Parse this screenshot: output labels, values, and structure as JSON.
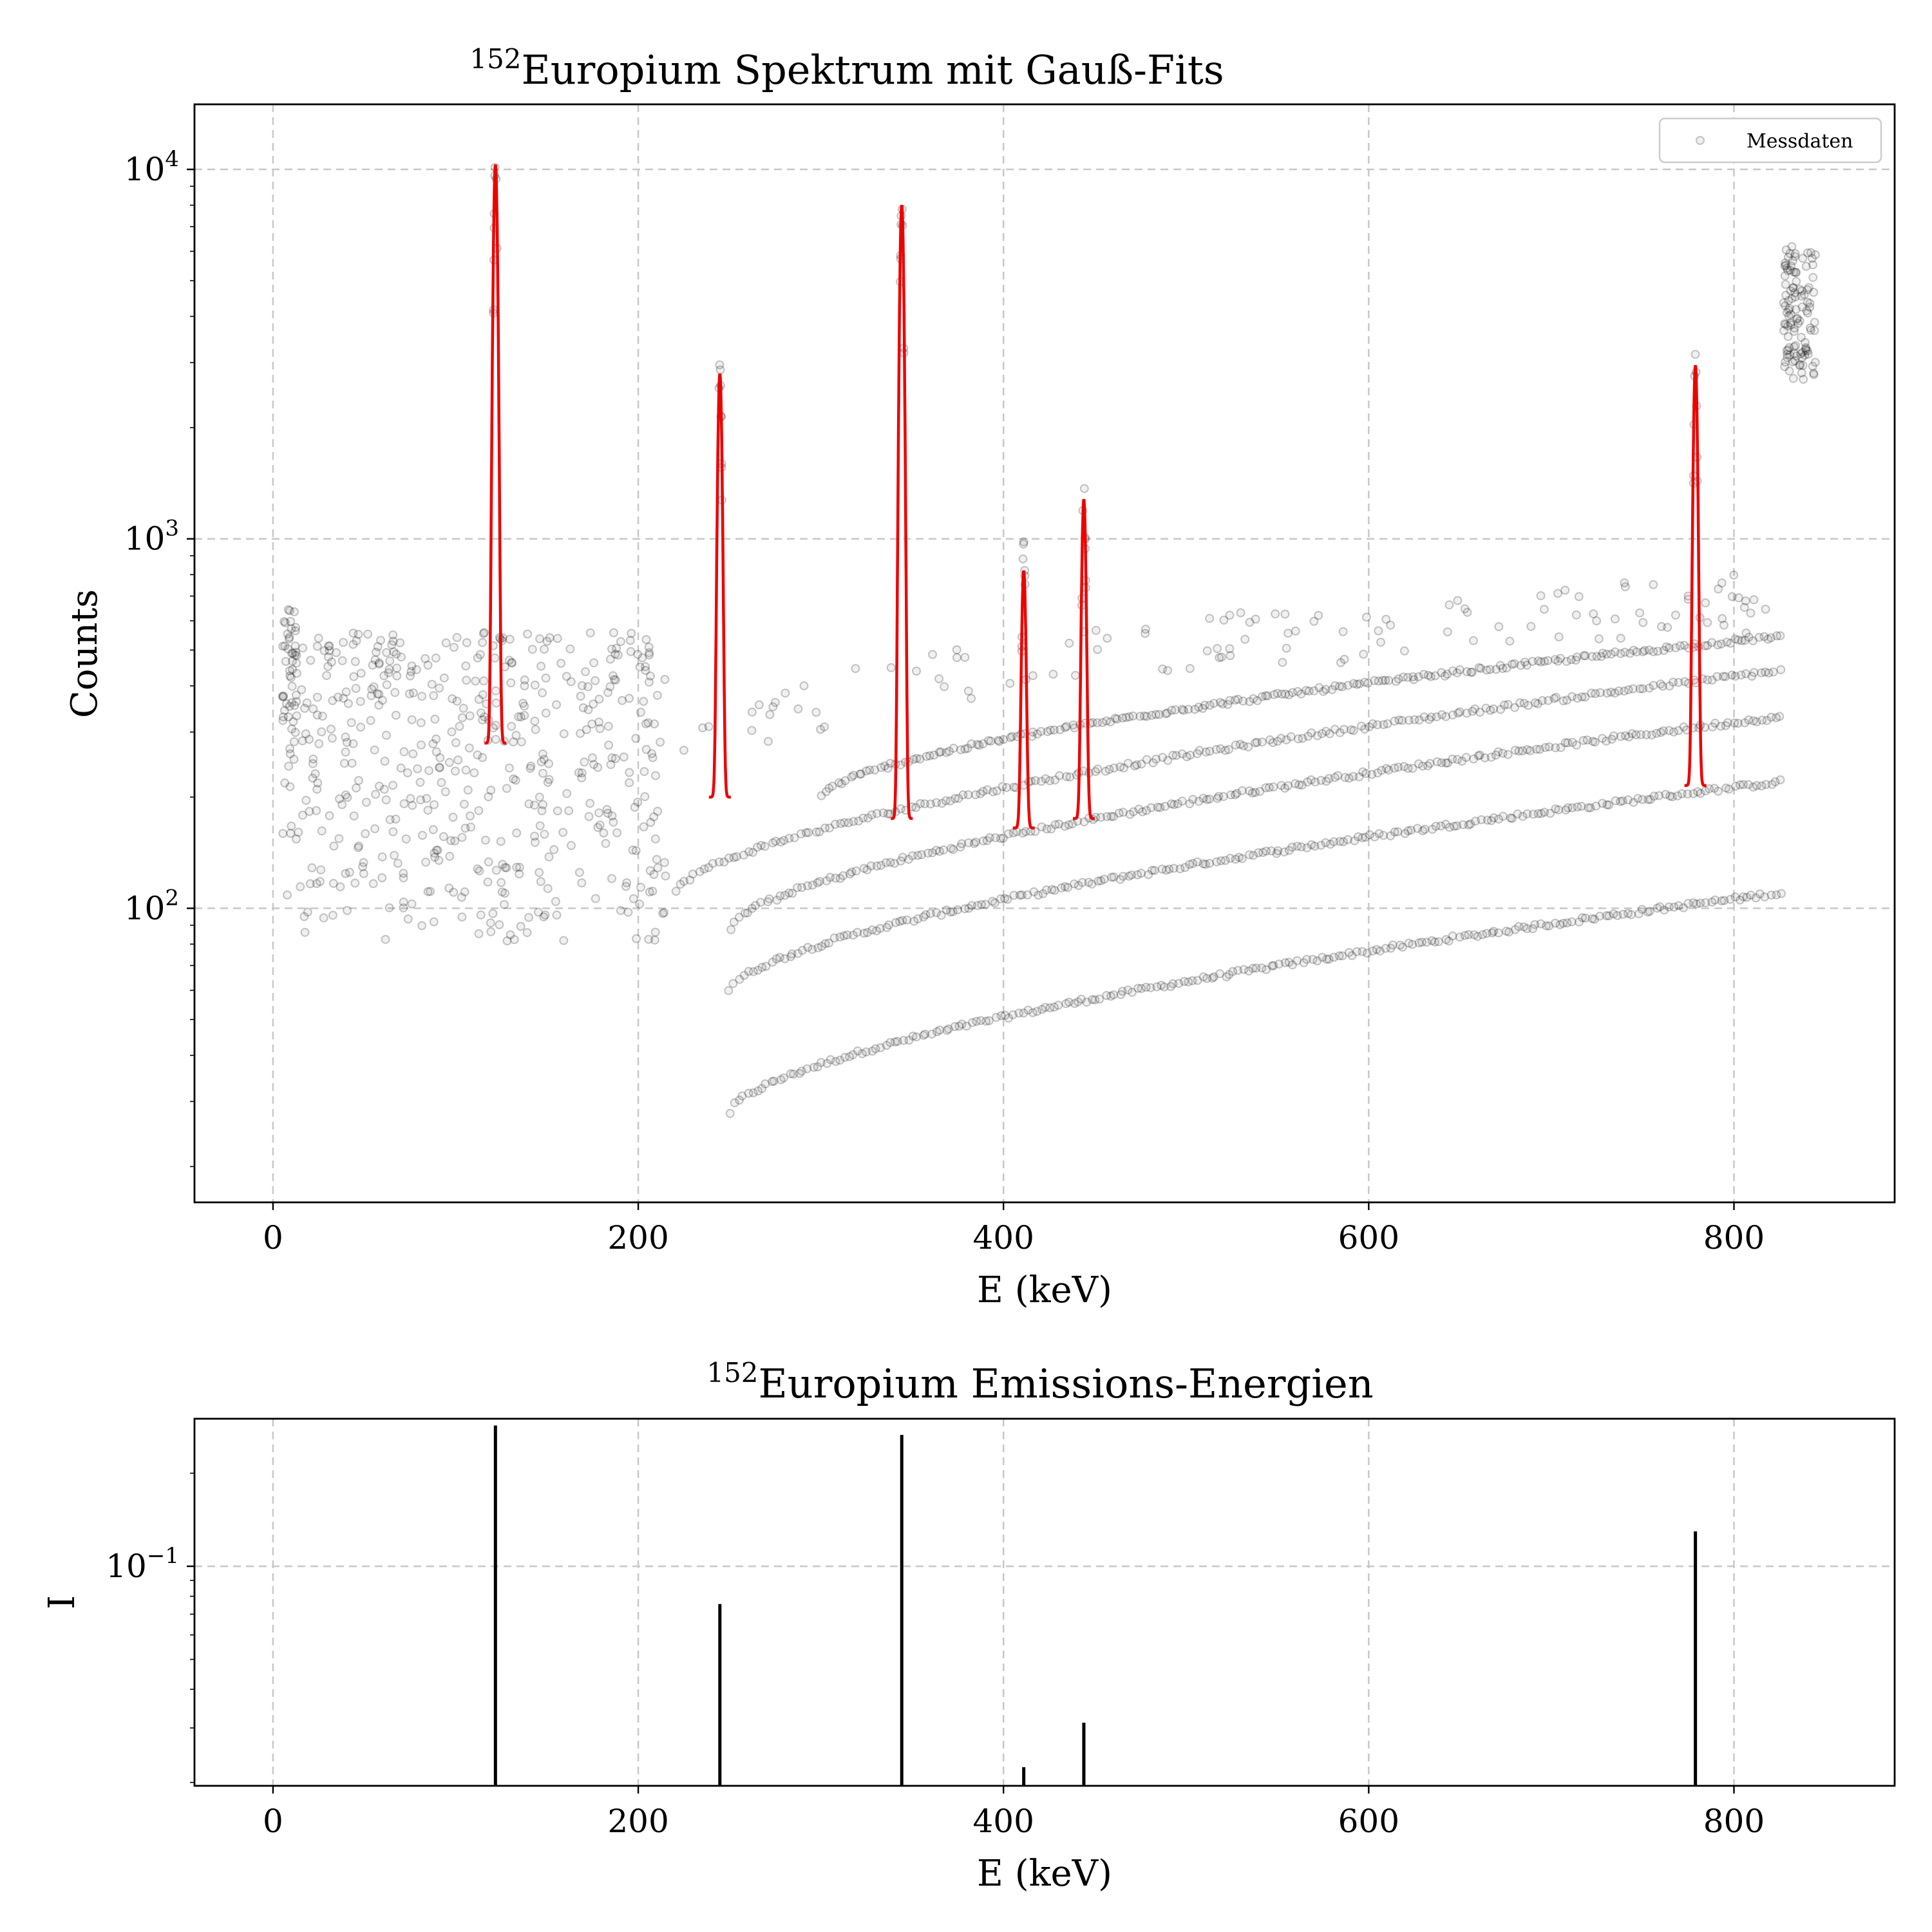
{
  "chart_data": [
    {
      "type": "scatter",
      "title_sup": "152",
      "title": "Europium Spektrum mit Gauß-Fits",
      "xlabel": "E (keV)",
      "ylabel": "Counts",
      "yscale": "log",
      "xlim": [
        -43,
        888
      ],
      "ylim": [
        16,
        15000
      ],
      "xticks": [
        0,
        200,
        400,
        600,
        800
      ],
      "yticks": [
        {
          "base": "10",
          "exp": "2",
          "value": 100
        },
        {
          "base": "10",
          "exp": "3",
          "value": 1000
        },
        {
          "base": "10",
          "exp": "4",
          "value": 10000
        }
      ],
      "grid": true,
      "legend": {
        "placement": "top-right",
        "entries": [
          "Messdaten"
        ]
      },
      "series": [
        {
          "name": "Messdaten",
          "kind": "scatter",
          "bands": [
            {
              "x": [
                250,
                825
              ],
              "y": [
                28,
                110
              ]
            },
            {
              "x": [
                250,
                825
              ],
              "y": [
                60,
                220
              ]
            },
            {
              "x": [
                250,
                825
              ],
              "y": [
                88,
                330
              ]
            },
            {
              "x": [
                220,
                825
              ],
              "y": [
                110,
                440
              ]
            },
            {
              "x": [
                300,
                825
              ],
              "y": [
                200,
                545
              ]
            }
          ],
          "cluster_low_energy": {
            "x": [
              5,
              215
            ],
            "y": [
              80,
              560
            ]
          },
          "cluster_high_energy": {
            "x": [
              827,
              845
            ],
            "y": [
              2700,
              6200
            ]
          }
        },
        {
          "kind": "gauss_fits",
          "peaks": [
            {
              "center": 121.8,
              "amplitude": 10300,
              "baseline": 280
            },
            {
              "center": 244.7,
              "amplitude": 2800,
              "baseline": 200
            },
            {
              "center": 344.3,
              "amplitude": 8000,
              "baseline": 175
            },
            {
              "center": 411.1,
              "amplitude": 820,
              "baseline": 165
            },
            {
              "center": 444.0,
              "amplitude": 1280,
              "baseline": 175
            },
            {
              "center": 778.9,
              "amplitude": 2950,
              "baseline": 215
            }
          ]
        }
      ]
    },
    {
      "type": "bar",
      "title_sup": "152",
      "title": "Europium Emissions-Energien",
      "xlabel": "E (keV)",
      "ylabel": "I",
      "yscale": "log",
      "xlim": [
        -43,
        888
      ],
      "ylim": [
        0.0195,
        0.3
      ],
      "xticks": [
        0,
        200,
        400,
        600,
        800
      ],
      "yticks": [
        {
          "base": "10",
          "exp": "−1",
          "value": 0.1
        }
      ],
      "grid": true,
      "x": [
        121.8,
        244.7,
        344.3,
        411.1,
        444.0,
        778.9
      ],
      "values": [
        0.2853,
        0.0755,
        0.2659,
        0.0224,
        0.0312,
        0.1297
      ]
    }
  ]
}
